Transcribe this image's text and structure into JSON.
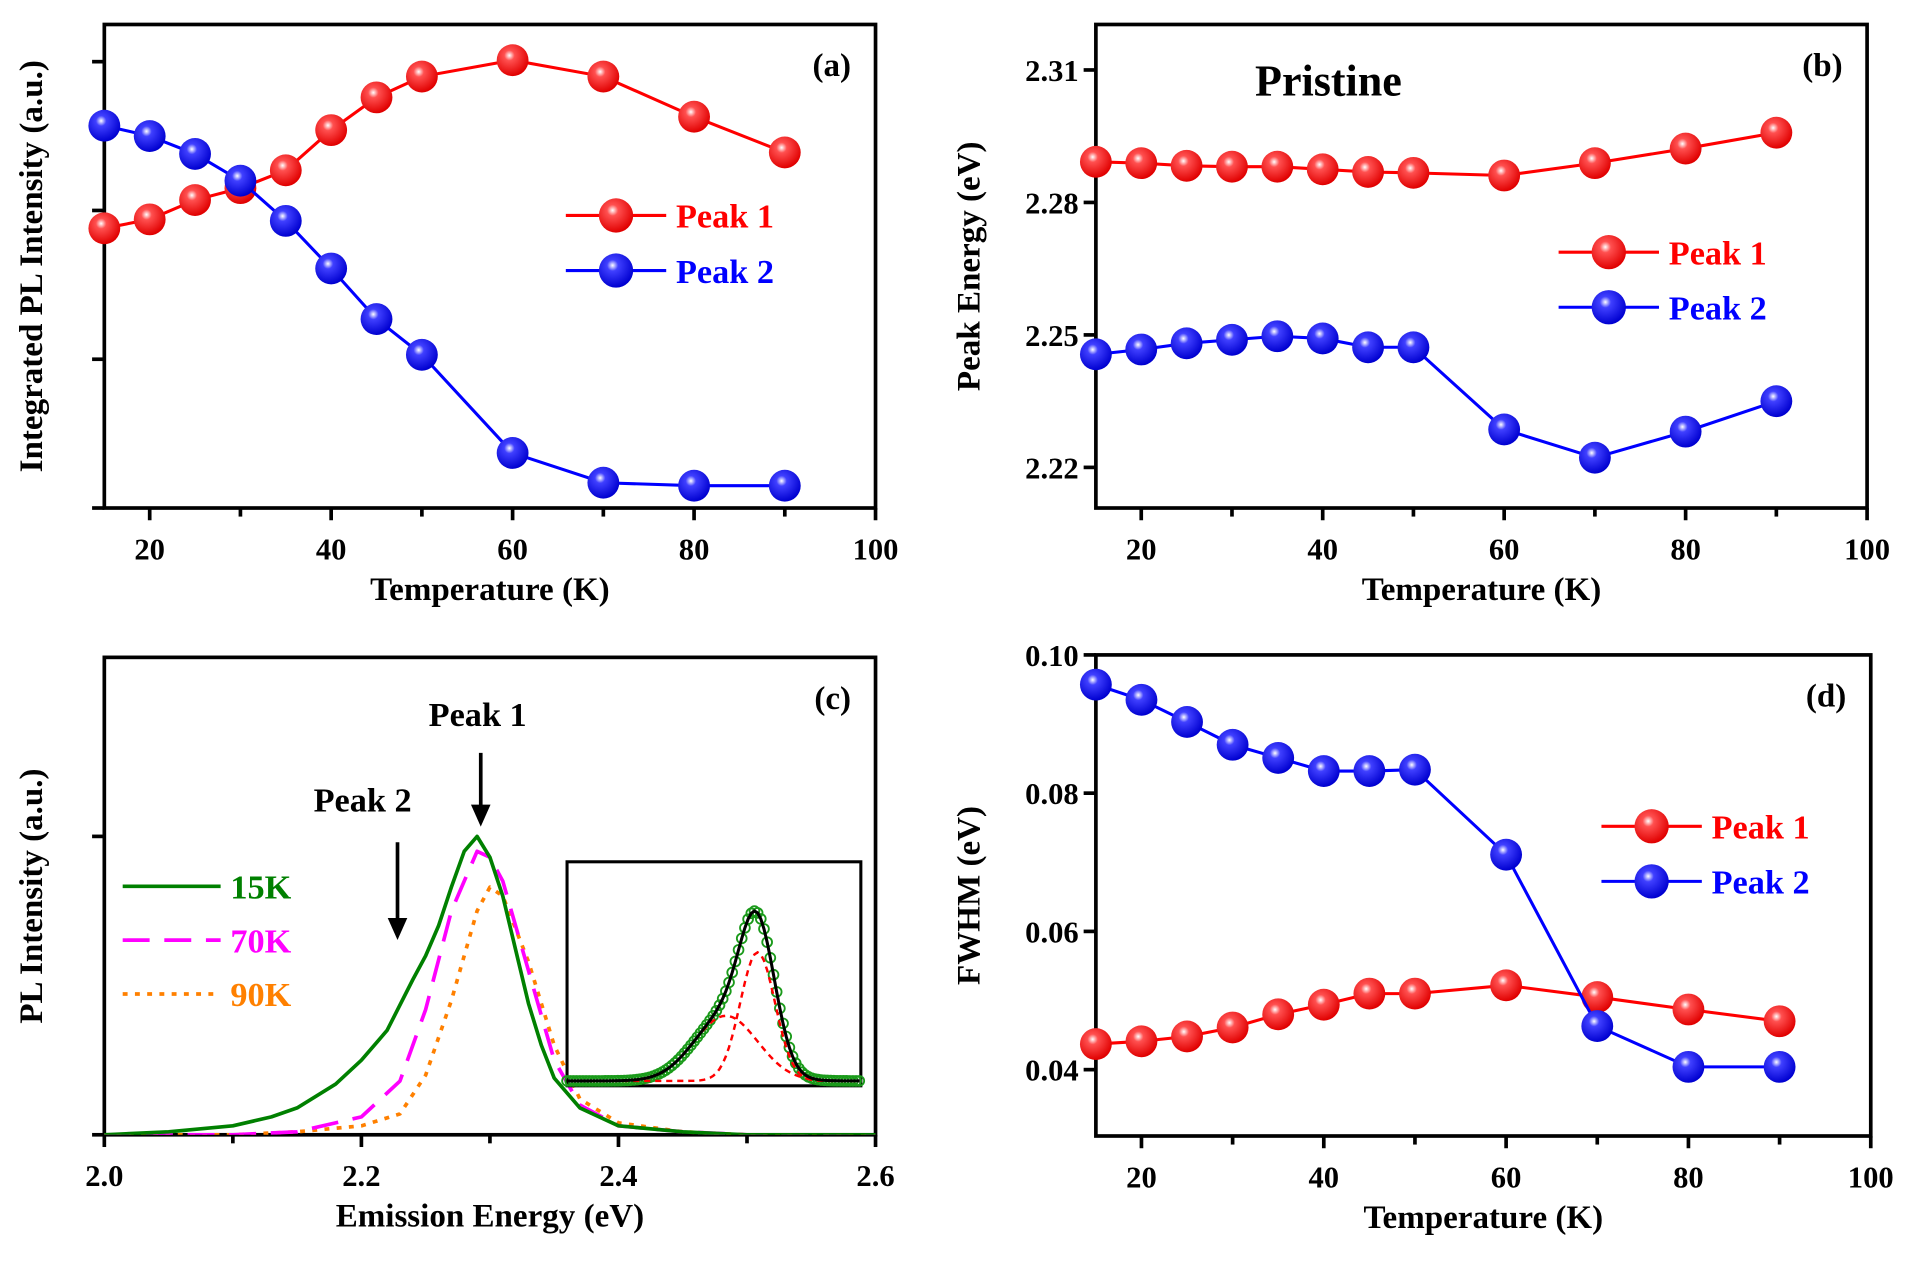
{
  "chart_data": [
    {
      "panel": "(a)",
      "type": "line",
      "xlabel": "Temperature (K)",
      "ylabel": "Integrated PL Intensity (a.u.)",
      "xlim": [
        15,
        100
      ],
      "xticks": [
        20,
        40,
        60,
        80,
        100
      ],
      "xticks_minor": [
        30,
        50,
        70,
        90
      ],
      "ylim": [
        0,
        3.25
      ],
      "yticks": [
        0,
        1,
        2,
        3
      ],
      "ytick_labels": [],
      "x": [
        15,
        20,
        25,
        30,
        35,
        40,
        45,
        50,
        60,
        70,
        80,
        90
      ],
      "series": [
        {
          "name": "Peak 1",
          "color": "#ff0000",
          "values": [
            1.88,
            1.94,
            2.07,
            2.15,
            2.27,
            2.54,
            2.76,
            2.9,
            3.01,
            2.9,
            2.63,
            2.39
          ]
        },
        {
          "name": "Peak 2",
          "color": "#0000ff",
          "values": [
            2.57,
            2.5,
            2.38,
            2.2,
            1.93,
            1.61,
            1.27,
            1.03,
            0.37,
            0.17,
            0.15,
            0.15
          ]
        }
      ],
      "legend": "center-right"
    },
    {
      "panel": "(b)",
      "type": "line",
      "title": "Pristine",
      "xlabel": "Temperature (K)",
      "ylabel": "Peak Energy (eV)",
      "xlim": [
        15,
        100
      ],
      "xticks": [
        20,
        40,
        60,
        80,
        100
      ],
      "xticks_minor": [
        30,
        50,
        70,
        90
      ],
      "ylim": [
        2.2108,
        2.3203
      ],
      "yticks": [
        2.22,
        2.25,
        2.28,
        2.31
      ],
      "ytick_labels": [
        "2.22",
        "2.25",
        "2.28",
        "2.31"
      ],
      "x": [
        15,
        20,
        25,
        30,
        35,
        40,
        45,
        50,
        60,
        70,
        80,
        90
      ],
      "series": [
        {
          "name": "Peak 1",
          "color": "#ff0000",
          "values": [
            2.2892,
            2.2889,
            2.2883,
            2.2881,
            2.2881,
            2.2875,
            2.2869,
            2.2867,
            2.2861,
            2.2889,
            2.2922,
            2.2958
          ]
        },
        {
          "name": "Peak 2",
          "color": "#0000ff",
          "values": [
            2.2456,
            2.2467,
            2.2481,
            2.2489,
            2.2497,
            2.2492,
            2.2472,
            2.2472,
            2.2286,
            2.2222,
            2.2281,
            2.235
          ]
        }
      ],
      "legend": "center-right"
    },
    {
      "panel": "(c)",
      "type": "line",
      "xlabel": "Emission Energy (eV)",
      "ylabel": "PL Intensity (a.u.)",
      "xlim": [
        2.0,
        2.6
      ],
      "xticks": [
        2.0,
        2.2,
        2.4,
        2.6
      ],
      "xticks_minor": [
        2.1,
        2.3,
        2.5
      ],
      "ylim": [
        0,
        1.6
      ],
      "yticks": [
        0,
        1
      ],
      "ytick_labels": [],
      "series": [
        {
          "name": "15K",
          "color": "#008000",
          "style": "solid",
          "x": [
            2.0,
            2.05,
            2.1,
            2.13,
            2.15,
            2.18,
            2.2,
            2.22,
            2.24,
            2.25,
            2.26,
            2.27,
            2.28,
            2.29,
            2.3,
            2.31,
            2.32,
            2.33,
            2.34,
            2.35,
            2.37,
            2.4,
            2.45,
            2.5,
            2.6
          ],
          "values": [
            0,
            0.01,
            0.03,
            0.06,
            0.09,
            0.17,
            0.25,
            0.35,
            0.52,
            0.6,
            0.7,
            0.83,
            0.95,
            1.0,
            0.93,
            0.8,
            0.62,
            0.44,
            0.3,
            0.19,
            0.09,
            0.03,
            0.01,
            0,
            0
          ]
        },
        {
          "name": "70K",
          "color": "#ff00ff",
          "style": "dashed",
          "x": [
            2.0,
            2.1,
            2.15,
            2.2,
            2.23,
            2.25,
            2.27,
            2.29,
            2.3,
            2.31,
            2.33,
            2.35,
            2.37,
            2.4,
            2.45,
            2.5,
            2.6
          ],
          "values": [
            0,
            0,
            0.01,
            0.06,
            0.18,
            0.42,
            0.75,
            0.95,
            0.93,
            0.85,
            0.55,
            0.25,
            0.1,
            0.03,
            0.01,
            0,
            0
          ]
        },
        {
          "name": "90K",
          "color": "#ff8000",
          "style": "dotted",
          "x": [
            2.0,
            2.1,
            2.15,
            2.2,
            2.23,
            2.25,
            2.27,
            2.29,
            2.3,
            2.31,
            2.33,
            2.35,
            2.37,
            2.4,
            2.45,
            2.5,
            2.6
          ],
          "values": [
            0,
            0,
            0.01,
            0.03,
            0.07,
            0.2,
            0.45,
            0.75,
            0.83,
            0.8,
            0.58,
            0.3,
            0.12,
            0.04,
            0.01,
            0,
            0
          ]
        }
      ],
      "annotations": [
        {
          "text": "Peak 1",
          "x": 2.29,
          "arrow_to": 1.0
        },
        {
          "text": "Peak 2",
          "x": 2.23,
          "arrow_to": 0.62
        }
      ],
      "inset": {
        "components": [
          {
            "center": 2.29,
            "width": 0.022,
            "amp": 0.75
          },
          {
            "center": 2.25,
            "width": 0.04,
            "amp": 0.38
          }
        ]
      },
      "legend": "center-left"
    },
    {
      "panel": "(d)",
      "type": "line",
      "xlabel": "Temperature (K)",
      "ylabel": "FWHM (eV)",
      "xlim": [
        15,
        100
      ],
      "xticks": [
        20,
        40,
        60,
        80,
        100
      ],
      "xticks_minor": [
        30,
        50,
        70,
        90
      ],
      "ylim": [
        0.0304,
        0.1
      ],
      "yticks": [
        0.04,
        0.06,
        0.08,
        0.1
      ],
      "ytick_labels": [
        "0.04",
        "0.06",
        "0.08",
        "0.10"
      ],
      "x": [
        15,
        20,
        25,
        30,
        35,
        40,
        45,
        50,
        60,
        70,
        80,
        90
      ],
      "series": [
        {
          "name": "Peak 1",
          "color": "#ff0000",
          "values": [
            0.0437,
            0.0441,
            0.0448,
            0.0461,
            0.048,
            0.0494,
            0.051,
            0.051,
            0.0522,
            0.0505,
            0.0487,
            0.047
          ]
        },
        {
          "name": "Peak 2",
          "color": "#0000ff",
          "values": [
            0.0957,
            0.0935,
            0.0903,
            0.087,
            0.0851,
            0.0832,
            0.0832,
            0.0834,
            0.0711,
            0.0463,
            0.0404,
            0.0404
          ]
        }
      ],
      "legend": "center-right"
    }
  ]
}
